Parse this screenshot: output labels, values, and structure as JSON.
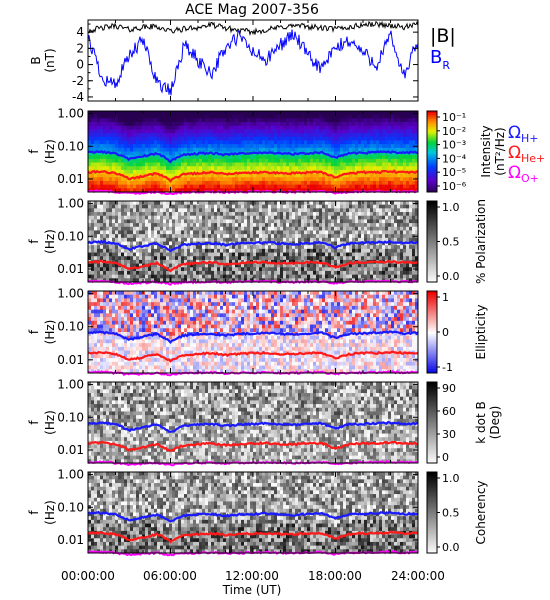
{
  "title": "ACE Mag 2007-356",
  "xlabel": "Time (UT)",
  "xticks": [
    "00:00:00",
    "06:00:00",
    "12:00:00",
    "18:00:00",
    "24:00:00"
  ],
  "legend_b": {
    "total": "|B|",
    "radial_main": "B",
    "radial_sub": "R"
  },
  "ion_labels": [
    {
      "main": "Ω",
      "sub": "H+",
      "color": "#1a1aff"
    },
    {
      "main": "Ω",
      "sub": "He+",
      "color": "#ff1a1a"
    },
    {
      "main": "Ω",
      "sub": "O+",
      "color": "#ff00ff"
    }
  ],
  "colors": {
    "bmag": "#000000",
    "br": "#0000ff",
    "h": "#1a1aff",
    "he": "#ff1a1a",
    "o": "#ff00ff"
  },
  "chart_data": [
    {
      "type": "line",
      "ylabel": "B",
      "yunit": "(nT)",
      "ylim": [
        -4.5,
        5.5
      ],
      "yticks": [
        "4",
        "2",
        "0",
        "-2",
        "-4"
      ],
      "x_range": [
        "00:00:00",
        "24:00:00"
      ],
      "series": [
        {
          "name": "|B|",
          "values": [
            4.2,
            4.5,
            4.8,
            4.3,
            4.6,
            4.7,
            4.1,
            4.4,
            4.6,
            4.9,
            4.5,
            4.2,
            4.0,
            4.3,
            4.6,
            4.8,
            4.7,
            4.5,
            4.4,
            4.6,
            4.9,
            5.0,
            4.8,
            4.6,
            4.9
          ]
        },
        {
          "name": "B_R",
          "values": [
            3.5,
            -1.5,
            -2.5,
            1.0,
            3.0,
            -2.0,
            -3.5,
            2.5,
            0.5,
            -1.0,
            2.0,
            3.5,
            1.5,
            0.5,
            2.5,
            3.8,
            1.0,
            -0.5,
            2.0,
            3.0,
            1.5,
            0.0,
            3.5,
            -1.5,
            3.0
          ]
        }
      ]
    },
    {
      "type": "heatmap",
      "name": "Intensity",
      "ylabel": "f",
      "yunit": "(Hz)",
      "yscale": "log",
      "ylim": [
        0.004,
        1.2
      ],
      "yticks": [
        "1.00",
        "0.10",
        "0.01"
      ],
      "colorbar": {
        "label": "Intensity",
        "label2": "(nT²/Hz)",
        "scale": "log",
        "ticks": [
          "10⁻¹",
          "10⁻²",
          "10⁻³",
          "10⁻⁴",
          "10⁻⁵",
          "10⁻⁶"
        ]
      }
    },
    {
      "type": "heatmap",
      "name": "% Polarization",
      "ylabel": "f",
      "yunit": "(Hz)",
      "yscale": "log",
      "ylim": [
        0.004,
        1.2
      ],
      "yticks": [
        "1.00",
        "0.10",
        "0.01"
      ],
      "colorbar": {
        "label": "% Polarization",
        "scale": "linear",
        "ticks": [
          "1.0",
          "0.5",
          "0.0"
        ]
      }
    },
    {
      "type": "heatmap",
      "name": "Ellipticity",
      "ylabel": "f",
      "yunit": "(Hz)",
      "yscale": "log",
      "ylim": [
        0.004,
        1.2
      ],
      "yticks": [
        "1.00",
        "0.10",
        "0.01"
      ],
      "colorbar": {
        "label": "Ellipticity",
        "scale": "linear",
        "ticks": [
          "1",
          "0",
          "-1"
        ]
      }
    },
    {
      "type": "heatmap",
      "name": "k dot B",
      "ylabel": "f",
      "yunit": "(Hz)",
      "yscale": "log",
      "ylim": [
        0.004,
        1.2
      ],
      "yticks": [
        "1.00",
        "0.10",
        "0.01"
      ],
      "colorbar": {
        "label": "k dot B",
        "label2": "(Deg)",
        "scale": "linear",
        "ticks": [
          "90",
          "60",
          "30",
          "0"
        ]
      }
    },
    {
      "type": "heatmap",
      "name": "Coherency",
      "ylabel": "f",
      "yunit": "(Hz)",
      "yscale": "log",
      "ylim": [
        0.004,
        1.2
      ],
      "yticks": [
        "1.00",
        "0.10",
        "0.01"
      ],
      "colorbar": {
        "label": "Coherency",
        "scale": "linear",
        "ticks": [
          "1.0",
          "0.5",
          "0.0"
        ]
      }
    }
  ],
  "gyrofrequency_hz": {
    "H+": [
      0.065,
      0.068,
      0.06,
      0.04,
      0.05,
      0.06,
      0.035,
      0.055,
      0.06,
      0.062,
      0.055,
      0.06,
      0.062,
      0.065,
      0.06,
      0.058,
      0.062,
      0.065,
      0.045,
      0.06,
      0.063,
      0.065,
      0.068,
      0.062,
      0.065
    ],
    "He+": [
      0.016,
      0.017,
      0.015,
      0.01,
      0.012,
      0.015,
      0.009,
      0.014,
      0.015,
      0.016,
      0.014,
      0.015,
      0.016,
      0.016,
      0.015,
      0.015,
      0.016,
      0.016,
      0.011,
      0.015,
      0.016,
      0.016,
      0.017,
      0.016,
      0.016
    ],
    "O+": [
      0.0042,
      0.0043,
      0.004,
      0.0036,
      0.0038,
      0.004,
      0.0035,
      0.0039,
      0.004,
      0.0041,
      0.0039,
      0.004,
      0.0041,
      0.0042,
      0.004,
      0.004,
      0.0041,
      0.0042,
      0.0037,
      0.004,
      0.0041,
      0.0042,
      0.0043,
      0.0041,
      0.0042
    ]
  }
}
